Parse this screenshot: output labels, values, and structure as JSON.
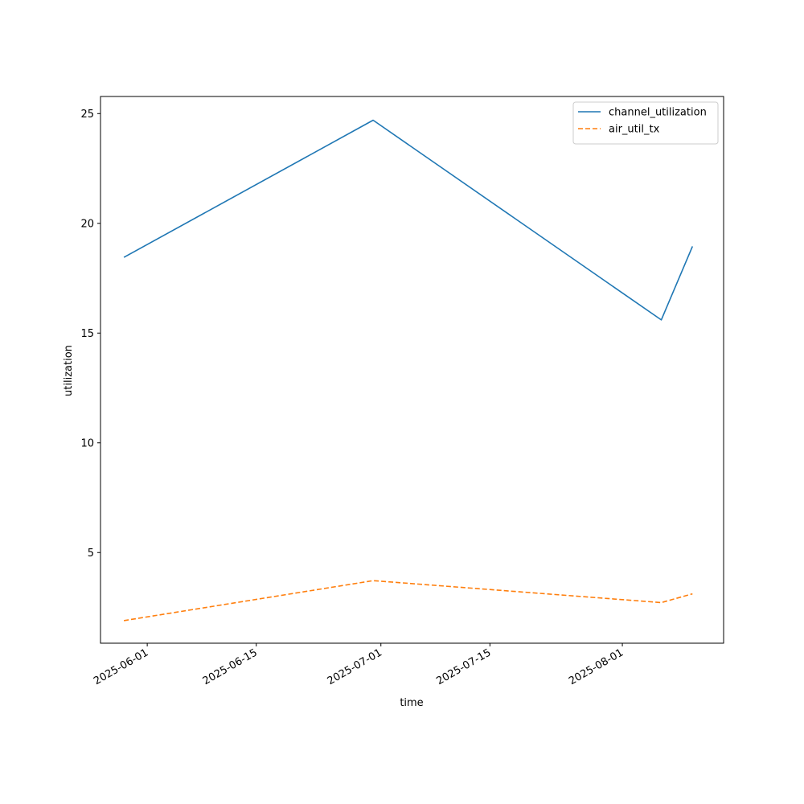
{
  "chart_data": {
    "type": "line",
    "title": "",
    "xlabel": "time",
    "ylabel": "utilization",
    "x_type": "date",
    "x": [
      "2025-05-29",
      "2025-06-30",
      "2025-08-06",
      "2025-08-10"
    ],
    "series": [
      {
        "name": "channel_utilization",
        "values": [
          18.45,
          24.7,
          15.6,
          18.95
        ],
        "color": "#1f77b4",
        "line_style": "solid"
      },
      {
        "name": "air_util_tx",
        "values": [
          1.9,
          3.72,
          2.72,
          3.12
        ],
        "color": "#ff7f0e",
        "line_style": "dashed"
      }
    ],
    "x_ticks": [
      "2025-06-01",
      "2025-06-15",
      "2025-07-01",
      "2025-07-15",
      "2025-08-01"
    ],
    "y_ticks": [
      5,
      10,
      15,
      20,
      25
    ],
    "xlim": [
      "2025-05-26",
      "2025-08-14"
    ],
    "ylim": [
      0.87,
      25.78
    ],
    "grid": false,
    "legend_position": "top-right"
  }
}
